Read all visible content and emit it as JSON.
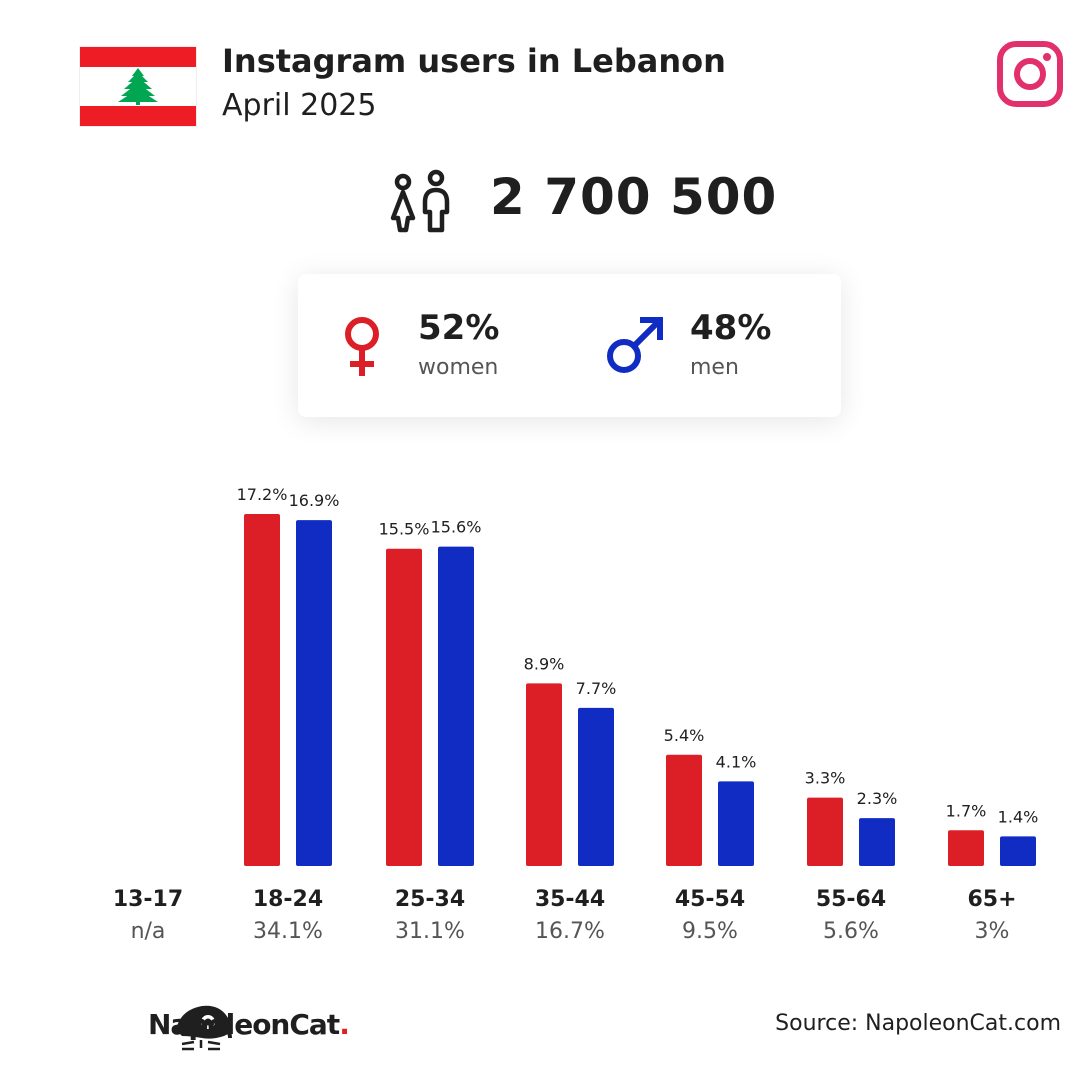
{
  "header": {
    "title": "Instagram users in Lebanon",
    "subtitle": "April 2025"
  },
  "total_users": "2 700 500",
  "gender": {
    "women": {
      "percent": "52%",
      "label": "women",
      "color": "#dc1f26"
    },
    "men": {
      "percent": "48%",
      "label": "men",
      "color": "#102cc2"
    }
  },
  "colors": {
    "women": "#dc1f26",
    "men": "#102cc2",
    "instagram": "#e1306c",
    "flag_red": "#ee1c25",
    "flag_cedar": "#00a651"
  },
  "chart_data": {
    "type": "bar",
    "categories": [
      "13-17",
      "18-24",
      "25-34",
      "35-44",
      "45-54",
      "55-64",
      "65+"
    ],
    "category_totals": [
      "n/a",
      "34.1%",
      "31.1%",
      "16.7%",
      "9.5%",
      "5.6%",
      "3%"
    ],
    "series": [
      {
        "key": "women",
        "values": [
          null,
          17.2,
          15.5,
          8.9,
          5.4,
          3.3,
          1.7
        ],
        "labels": [
          "",
          "17.2%",
          "15.5%",
          "8.9%",
          "5.4%",
          "3.3%",
          "1.7%"
        ]
      },
      {
        "key": "men",
        "values": [
          null,
          16.9,
          15.6,
          7.7,
          4.1,
          2.3,
          1.4
        ],
        "labels": [
          "",
          "16.9%",
          "15.6%",
          "7.7%",
          "4.1%",
          "2.3%",
          "1.4%"
        ]
      }
    ],
    "ylim": [
      0,
      17.2
    ],
    "grid": false
  },
  "source": "Source: NapoleonCat.com",
  "logo": {
    "name": "NapoleonCat",
    "dot": "."
  }
}
